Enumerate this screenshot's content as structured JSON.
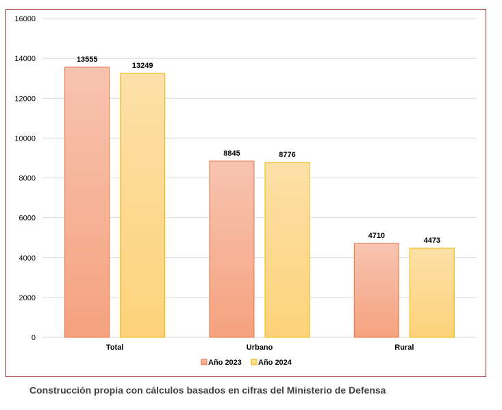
{
  "chart_data": {
    "type": "bar",
    "categories": [
      "Total",
      "Urbano",
      "Rural"
    ],
    "series": [
      {
        "name": "Año 2023",
        "values": [
          13555,
          8845,
          4710
        ]
      },
      {
        "name": "Año 2024",
        "values": [
          13249,
          8776,
          4473
        ]
      }
    ],
    "ylim": [
      0,
      16000
    ],
    "yticks": [
      0,
      2000,
      4000,
      6000,
      8000,
      10000,
      12000,
      14000,
      16000
    ],
    "grid": true,
    "legend_position": "bottom"
  },
  "colors": {
    "series_2023_top": "#f7c4b0",
    "series_2023_bottom": "#f5a27f",
    "series_2023_stroke": "#e8744a",
    "series_2024_top": "#fde0a8",
    "series_2024_bottom": "#fdd27a",
    "series_2024_stroke": "#e6b800",
    "grid": "#d9d9d9",
    "frame": "#a52a2a"
  },
  "caption": "Construcción propia con cálculos basados en cifras del Ministerio de Defensa"
}
